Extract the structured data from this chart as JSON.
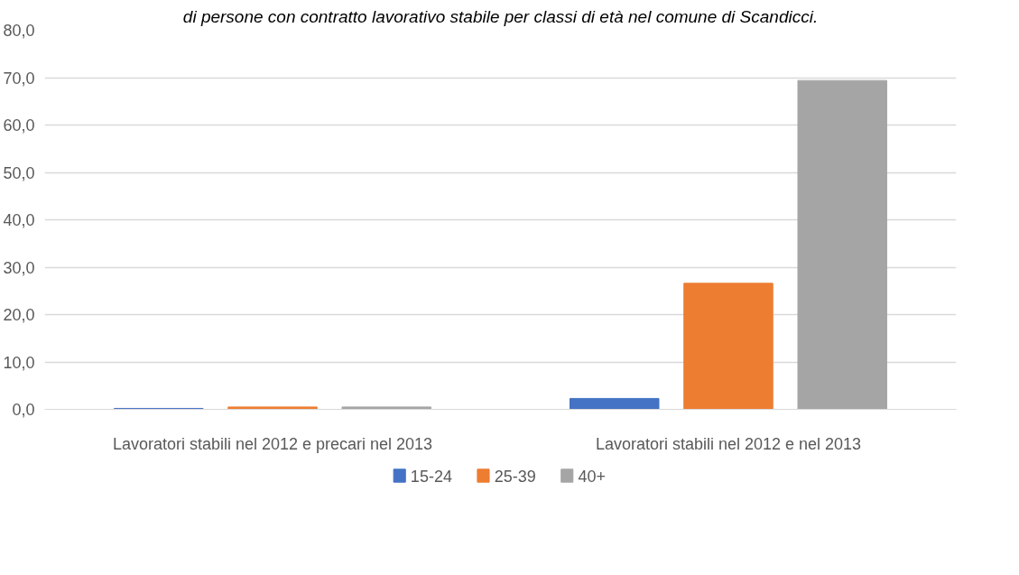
{
  "chart_data": {
    "type": "bar",
    "title": "di persone con contratto lavorativo stabile per classi di età nel comune di Scandicci.",
    "categories": [
      "Lavoratori stabili nel 2012 e precari nel 2013",
      "Lavoratori stabili nel 2012 e nel 2013"
    ],
    "series": [
      {
        "name": "15-24",
        "color": "#4472c4",
        "values": [
          0.2,
          2.3
        ]
      },
      {
        "name": "25-39",
        "color": "#ed7d31",
        "values": [
          0.5,
          26.6
        ]
      },
      {
        "name": "40+",
        "color": "#a5a5a5",
        "values": [
          0.5,
          69.4
        ]
      }
    ],
    "ylim": [
      0,
      80
    ],
    "yticks": [
      {
        "value": 0,
        "label": "0,0"
      },
      {
        "value": 10,
        "label": "10,0"
      },
      {
        "value": 20,
        "label": "20,0"
      },
      {
        "value": 30,
        "label": "30,0"
      },
      {
        "value": 40,
        "label": "40,0"
      },
      {
        "value": 50,
        "label": "50,0"
      },
      {
        "value": 60,
        "label": "60,0"
      },
      {
        "value": 70,
        "label": "70,0"
      },
      {
        "value": 80,
        "label": "80,0"
      }
    ],
    "grid": "y",
    "legend": "bottom"
  }
}
